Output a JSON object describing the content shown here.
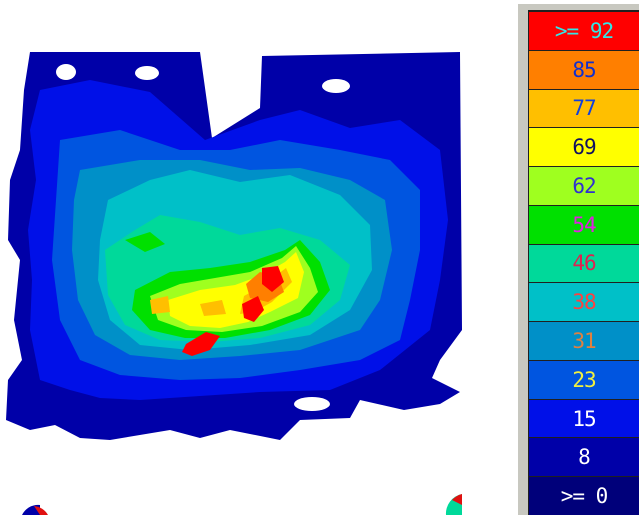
{
  "chart_data": {
    "type": "heatmap",
    "colorbar": {
      "levels": [
        {
          "label": ">= 92",
          "color": "#ff0000",
          "text_color": "#30e8e8"
        },
        {
          "label": "85",
          "color": "#ff7f00",
          "text_color": "#1030d0"
        },
        {
          "label": "77",
          "color": "#ffbf00",
          "text_color": "#1040e0"
        },
        {
          "label": "69",
          "color": "#ffff00",
          "text_color": "#101060"
        },
        {
          "label": "62",
          "color": "#9fff1f",
          "text_color": "#3030d0"
        },
        {
          "label": "54",
          "color": "#00e000",
          "text_color": "#e020e0"
        },
        {
          "label": "46",
          "color": "#00d99a",
          "text_color": "#e02050"
        },
        {
          "label": "38",
          "color": "#00c0c8",
          "text_color": "#ff4040"
        },
        {
          "label": "31",
          "color": "#0090c8",
          "text_color": "#e08040"
        },
        {
          "label": "23",
          "color": "#0055e0",
          "text_color": "#f0f040"
        },
        {
          "label": "15",
          "color": "#0010e8",
          "text_color": "#ffffff"
        },
        {
          "label": "8",
          "color": "#0000a8",
          "text_color": "#ffffff"
        },
        {
          "label": ">= 0",
          "color": "#00007a",
          "text_color": "#ffffff"
        }
      ]
    },
    "map_levels": [
      {
        "level": 8,
        "color": "#0000a8"
      },
      {
        "level": 15,
        "color": "#0010e8"
      },
      {
        "level": 23,
        "color": "#0055e0"
      },
      {
        "level": 31,
        "color": "#0090c8"
      },
      {
        "level": 38,
        "color": "#00c0c8"
      },
      {
        "level": 46,
        "color": "#00d99a"
      },
      {
        "level": 54,
        "color": "#00e000"
      },
      {
        "level": 62,
        "color": "#9fff1f"
      },
      {
        "level": 69,
        "color": "#ffff00"
      },
      {
        "level": 77,
        "color": "#ffbf00"
      },
      {
        "level": 85,
        "color": "#ff7f00"
      },
      {
        "level": 92,
        "color": "#ff0000"
      }
    ]
  }
}
